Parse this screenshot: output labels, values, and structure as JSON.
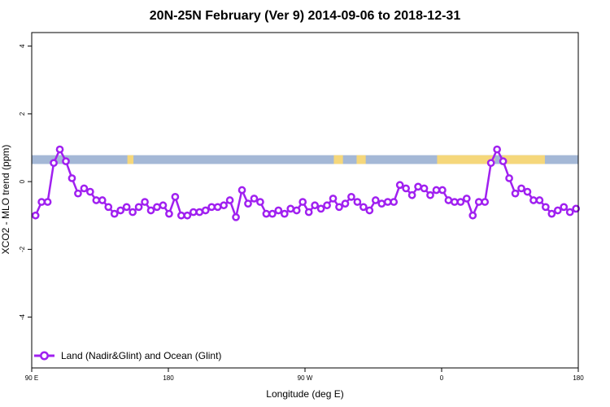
{
  "chart_data": {
    "type": "line",
    "title": "20N-25N February (Ver 9)   2014-09-06 to 2018-12-31",
    "xlabel": "Longitude (deg E)",
    "ylabel": "XCO2 - MLO trend (ppm)",
    "xlim": [
      90,
      450
    ],
    "ylim": [
      -5.5,
      4.4
    ],
    "xticks": [
      {
        "value": 90,
        "label": "90 E"
      },
      {
        "value": 180,
        "label": "180"
      },
      {
        "value": 270,
        "label": "90 W"
      },
      {
        "value": 360,
        "label": "0"
      },
      {
        "value": 450,
        "label": "180"
      }
    ],
    "yticks": [
      {
        "value": -4,
        "label": "-4"
      },
      {
        "value": -2,
        "label": "-2"
      },
      {
        "value": 0,
        "label": "0"
      },
      {
        "value": 2,
        "label": "2"
      },
      {
        "value": 4,
        "label": "4"
      }
    ],
    "legend_position": "bottom-left",
    "grid": false,
    "land_ocean_band": {
      "y_range": [
        0.52,
        0.78
      ],
      "ocean_color": "#a4b8d6",
      "land_color": "#f5d77b",
      "land_segments": [
        [
          153,
          157
        ],
        [
          289,
          295
        ],
        [
          304,
          310
        ],
        [
          357,
          395
        ],
        [
          400,
          428
        ]
      ]
    },
    "series": [
      {
        "name": "Land (Nadir&Glint) and Ocean (Glint)",
        "color": "#a020f0",
        "x": [
          92.5,
          96.5,
          100.5,
          104.5,
          108.5,
          112.5,
          116.5,
          120.5,
          124.5,
          128.5,
          132.5,
          136.5,
          140.5,
          144.5,
          148.5,
          152.5,
          156.5,
          160.5,
          164.5,
          168.5,
          172.5,
          176.5,
          180.5,
          184.5,
          188.5,
          192.5,
          196.5,
          200.5,
          204.5,
          208.5,
          212.5,
          216.5,
          220.5,
          224.5,
          228.5,
          232.5,
          236.5,
          240.5,
          244.5,
          248.5,
          252.5,
          256.5,
          260.5,
          264.5,
          268.5,
          272.5,
          276.5,
          280.5,
          284.5,
          288.5,
          292.5,
          296.5,
          300.5,
          304.5,
          308.5,
          312.5,
          316.5,
          320.5,
          324.5,
          328.5,
          332.5,
          336.5,
          340.5,
          344.5,
          348.5,
          352.5,
          356.5,
          360.5,
          364.5,
          368.5,
          372.5,
          376.5,
          380.5,
          384.5,
          388.5,
          392.5,
          396.5,
          400.5,
          404.5,
          408.5,
          412.5,
          416.5,
          420.5,
          424.5,
          428.5,
          432.5,
          436.5,
          440.5,
          444.5,
          448.5
        ],
        "y": [
          -1.0,
          -0.6,
          -0.6,
          0.55,
          0.95,
          0.6,
          0.1,
          -0.35,
          -0.2,
          -0.3,
          -0.55,
          -0.55,
          -0.75,
          -0.95,
          -0.85,
          -0.75,
          -0.9,
          -0.75,
          -0.6,
          -0.85,
          -0.75,
          -0.7,
          -0.95,
          -0.45,
          -1.0,
          -1.0,
          -0.9,
          -0.9,
          -0.85,
          -0.75,
          -0.75,
          -0.7,
          -0.55,
          -1.05,
          -0.25,
          -0.65,
          -0.5,
          -0.6,
          -0.95,
          -0.95,
          -0.85,
          -0.95,
          -0.8,
          -0.85,
          -0.6,
          -0.9,
          -0.7,
          -0.8,
          -0.7,
          -0.5,
          -0.75,
          -0.65,
          -0.45,
          -0.6,
          -0.75,
          -0.85,
          -0.55,
          -0.65,
          -0.6,
          -0.6,
          -0.1,
          -0.2,
          -0.4,
          -0.15,
          -0.2,
          -0.4,
          -0.25,
          -0.25,
          -0.55,
          -0.6,
          -0.6,
          -0.5,
          -1.0,
          -0.6,
          -0.6,
          0.55,
          0.95,
          0.6,
          0.1,
          -0.35,
          -0.2,
          -0.3,
          -0.55,
          -0.55,
          -0.75,
          -0.95,
          -0.85,
          -0.75,
          -0.9,
          -0.8
        ]
      }
    ]
  }
}
